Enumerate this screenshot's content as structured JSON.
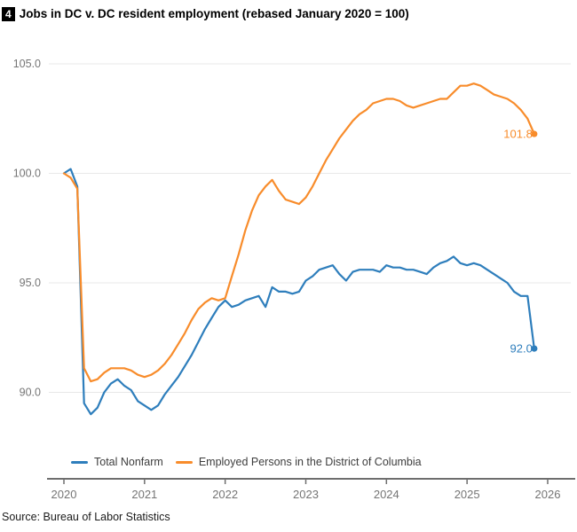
{
  "figure_number": "4",
  "title": "Jobs in DC v. DC resident employment (rebased January 2020 = 100)",
  "source": "Source: Bureau of Labor Statistics",
  "colors": {
    "blue": "#2E7EBC",
    "orange": "#F88C2B",
    "grid": "#E8E8E8",
    "axis_line": "#6E6E6E",
    "tick_label": "#757575",
    "legend_text": "#3D3D3D"
  },
  "legend": [
    {
      "label": "Total Nonfarm",
      "color_key": "blue"
    },
    {
      "label": "Employed Persons in the District of Columbia",
      "color_key": "orange"
    }
  ],
  "chart_data": {
    "type": "line",
    "title": "Jobs in DC v. DC resident employment (rebased January 2020 = 100)",
    "x_start": "2020-01",
    "x_frequency": "monthly",
    "x_end": "2025-11",
    "grid": "horizontal",
    "legend_position": "bottom",
    "xticks": [
      {
        "label": "2020",
        "value": 2020
      },
      {
        "label": "2021",
        "value": 2021
      },
      {
        "label": "2022",
        "value": 2022
      },
      {
        "label": "2023",
        "value": 2023
      },
      {
        "label": "2024",
        "value": 2024
      },
      {
        "label": "2025",
        "value": 2025
      },
      {
        "label": "2026",
        "value": 2026
      }
    ],
    "yticks": [
      {
        "label": "105.0",
        "value": 105.0
      },
      {
        "label": "100.0",
        "value": 100.0
      },
      {
        "label": "95.0",
        "value": 95.0
      },
      {
        "label": "90.0",
        "value": 90.0
      }
    ],
    "ylim": [
      88.0,
      106.3
    ],
    "xlim": [
      2019.81,
      2026.28
    ],
    "series": [
      {
        "name": "Total Nonfarm",
        "color_key": "blue",
        "end_label": "92.0",
        "values": [
          100.0,
          100.2,
          99.4,
          89.5,
          89.0,
          89.3,
          90.0,
          90.4,
          90.6,
          90.3,
          90.1,
          89.6,
          89.4,
          89.2,
          89.4,
          89.9,
          90.3,
          90.7,
          91.2,
          91.7,
          92.3,
          92.9,
          93.4,
          93.9,
          94.2,
          93.9,
          94.0,
          94.2,
          94.3,
          94.4,
          93.9,
          94.8,
          94.6,
          94.6,
          94.5,
          94.6,
          95.1,
          95.3,
          95.6,
          95.7,
          95.8,
          95.4,
          95.1,
          95.5,
          95.6,
          95.6,
          95.6,
          95.5,
          95.8,
          95.7,
          95.7,
          95.6,
          95.6,
          95.5,
          95.4,
          95.7,
          95.9,
          96.0,
          96.2,
          95.9,
          95.8,
          95.9,
          95.8,
          95.6,
          95.4,
          95.2,
          95.0,
          94.6,
          94.4,
          94.4,
          92.0
        ]
      },
      {
        "name": "Employed Persons in the District of Columbia",
        "color_key": "orange",
        "end_label": "101.8",
        "values": [
          100.0,
          99.8,
          99.3,
          91.1,
          90.5,
          90.6,
          90.9,
          91.1,
          91.1,
          91.1,
          91.0,
          90.8,
          90.7,
          90.8,
          91.0,
          91.3,
          91.7,
          92.2,
          92.7,
          93.3,
          93.8,
          94.1,
          94.3,
          94.2,
          94.3,
          95.3,
          96.3,
          97.4,
          98.3,
          99.0,
          99.4,
          99.7,
          99.2,
          98.8,
          98.7,
          98.6,
          98.9,
          99.4,
          100.0,
          100.6,
          101.1,
          101.6,
          102.0,
          102.4,
          102.7,
          102.9,
          103.2,
          103.3,
          103.4,
          103.4,
          103.3,
          103.1,
          103.0,
          103.1,
          103.2,
          103.3,
          103.4,
          103.4,
          103.7,
          104.0,
          104.0,
          104.1,
          104.0,
          103.8,
          103.6,
          103.5,
          103.4,
          103.2,
          102.9,
          102.5,
          101.8
        ]
      }
    ]
  }
}
